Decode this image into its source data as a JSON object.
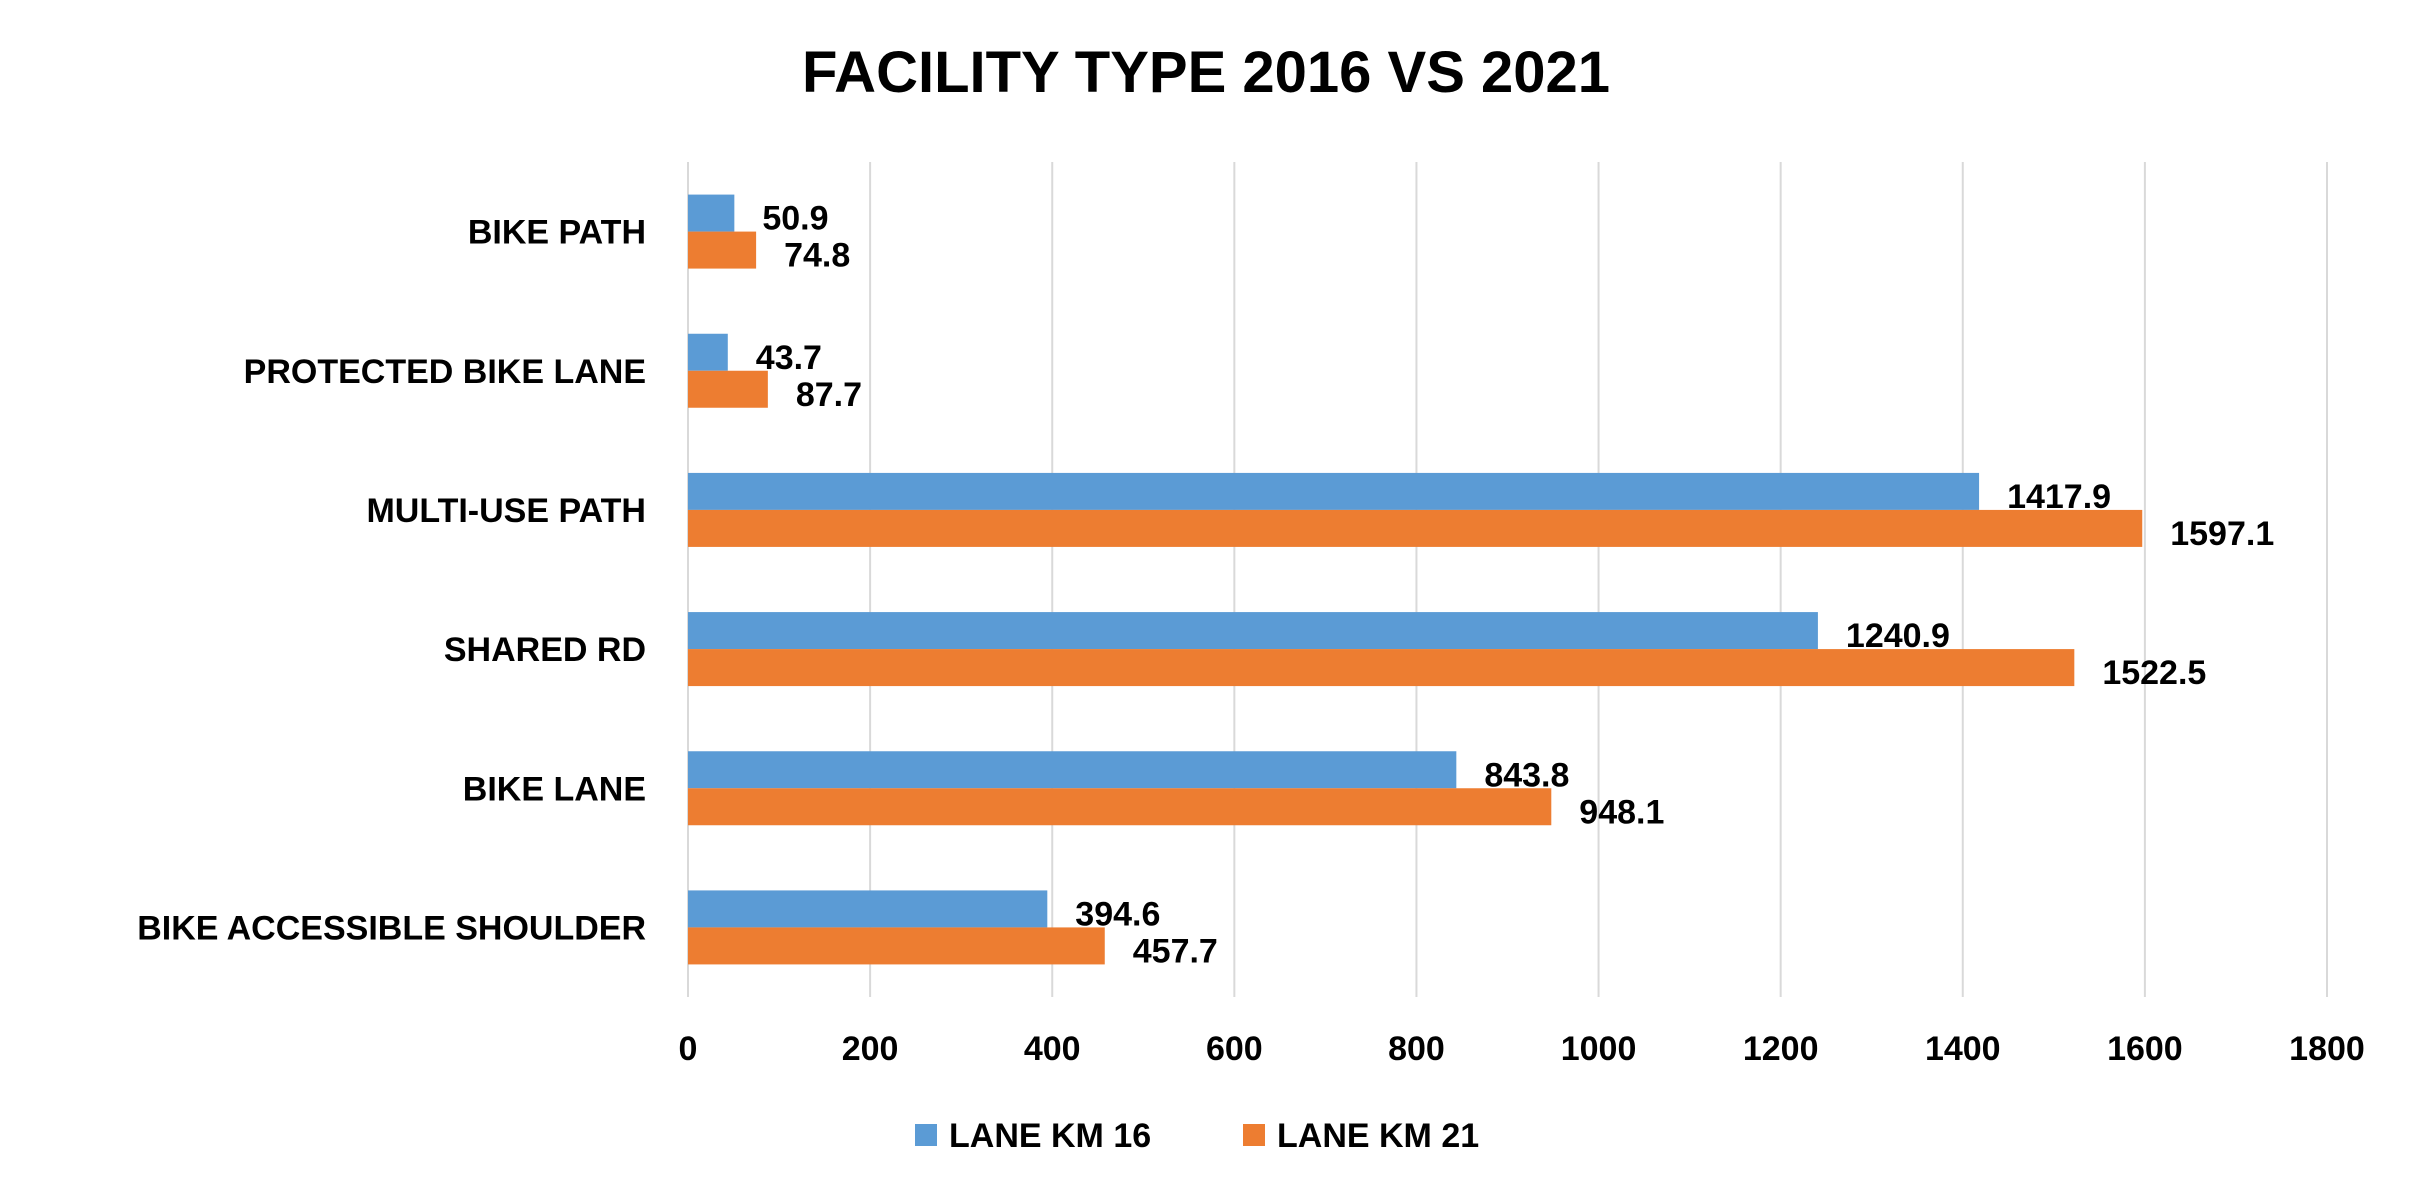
{
  "chart_data": {
    "type": "bar",
    "orientation": "horizontal",
    "title": "FACILITY TYPE 2016 VS 2021",
    "categories": [
      "BIKE PATH",
      "PROTECTED BIKE LANE",
      "MULTI-USE PATH",
      "SHARED RD",
      "BIKE LANE",
      "BIKE ACCESSIBLE SHOULDER"
    ],
    "series": [
      {
        "name": "LANE KM 16",
        "color": "#5B9BD5",
        "values": [
          50.9,
          43.7,
          1417.9,
          1240.9,
          843.8,
          394.6
        ]
      },
      {
        "name": "LANE KM 21",
        "color": "#ED7D31",
        "values": [
          74.8,
          87.7,
          1597.1,
          1522.5,
          948.1,
          457.7
        ]
      }
    ],
    "xlim": [
      0,
      1800
    ],
    "xticks": [
      0,
      200,
      400,
      600,
      800,
      1000,
      1200,
      1400,
      1600,
      1800
    ],
    "grid": "vertical",
    "legend": "bottom",
    "data_labels": true,
    "gridline_color": "#D9D9D9"
  }
}
